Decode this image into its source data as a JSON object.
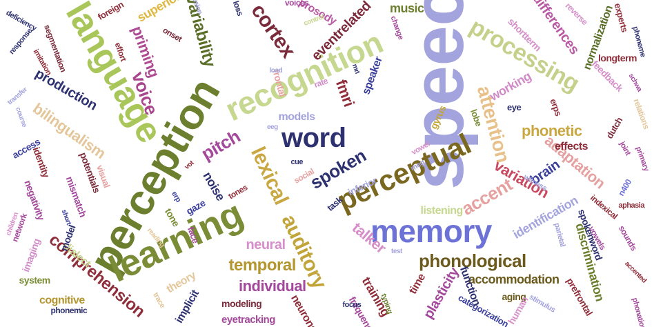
{
  "words": [
    {
      "text": "speech",
      "color": "#a3a3dd"
    },
    {
      "text": "perception",
      "color": "#6b7f2e"
    },
    {
      "text": "language",
      "color": "#a9c65a"
    },
    {
      "text": "recognition",
      "color": "#c6d78f"
    },
    {
      "text": "learning",
      "color": "#7a8c35"
    },
    {
      "text": "memory",
      "color": "#6d73d6"
    },
    {
      "text": "perceptual",
      "color": "#7a6820"
    },
    {
      "text": "word",
      "color": "#2e3170"
    },
    {
      "text": "auditory",
      "color": "#c2a53a"
    },
    {
      "text": "lexical",
      "color": "#c9a741"
    },
    {
      "text": "processing",
      "color": "#c5d18b"
    },
    {
      "text": "attention",
      "color": "#e8c08a"
    },
    {
      "text": "cortex",
      "color": "#7a2a3a"
    },
    {
      "text": "variability",
      "color": "#5a6e27"
    },
    {
      "text": "priming",
      "color": "#ad4a91"
    },
    {
      "text": "voice",
      "color": "#a8458c"
    },
    {
      "text": "spoken",
      "color": "#2e3170"
    },
    {
      "text": "pitch",
      "color": "#a3489b"
    },
    {
      "text": "phonological",
      "color": "#6b5a1c"
    },
    {
      "text": "comprehension",
      "color": "#8f2e3a"
    },
    {
      "text": "accent",
      "color": "#e6a0a0"
    },
    {
      "text": "temporal",
      "color": "#b3962e"
    },
    {
      "text": "talker",
      "color": "#d68ec9"
    },
    {
      "text": "bilingualism",
      "color": "#e3c79a"
    },
    {
      "text": "production",
      "color": "#2e3170"
    },
    {
      "text": "fmri",
      "color": "#8f2e3a"
    },
    {
      "text": "eventrelated",
      "color": "#7a2a3a"
    },
    {
      "text": "adaptation",
      "color": "#e6a0a0"
    },
    {
      "text": "variation",
      "color": "#c94a60"
    },
    {
      "text": "individual",
      "color": "#a3489b"
    },
    {
      "text": "accommodation",
      "color": "#6b5a1c"
    },
    {
      "text": "phonetic",
      "color": "#c9a741"
    },
    {
      "text": "brain",
      "color": "#3a3f9c"
    },
    {
      "text": "neural",
      "color": "#d68ec9"
    },
    {
      "text": "differences",
      "color": "#b95aa5"
    },
    {
      "text": "working",
      "color": "#d08ac8"
    },
    {
      "text": "superior",
      "color": "#e0b840"
    },
    {
      "text": "music",
      "color": "#6b7f2e"
    },
    {
      "text": "identification",
      "color": "#a3a3dd"
    },
    {
      "text": "discrimination",
      "color": "#6b7f2e"
    },
    {
      "text": "models",
      "color": "#a3a3dd"
    },
    {
      "text": "listening",
      "color": "#c6d78f"
    },
    {
      "text": "speaker",
      "color": "#3a3f9c"
    },
    {
      "text": "prosody",
      "color": "#b95aa5"
    },
    {
      "text": "plasticity",
      "color": "#a3489b"
    },
    {
      "text": "training",
      "color": "#8f2e3a"
    },
    {
      "text": "noise",
      "color": "#2e3170"
    },
    {
      "text": "effects",
      "color": "#8f2e3a"
    },
    {
      "text": "feedback",
      "color": "#d68ec9"
    },
    {
      "text": "longterm",
      "color": "#8f2e3a"
    },
    {
      "text": "normalization",
      "color": "#5a6e27"
    },
    {
      "text": "shortterm",
      "color": "#d68ec9"
    },
    {
      "text": "dialect",
      "color": "#c6d78f"
    },
    {
      "text": "cognitive",
      "color": "#b3962e"
    },
    {
      "text": "system",
      "color": "#7a8c35"
    },
    {
      "text": "imaging",
      "color": "#d08ac8"
    },
    {
      "text": "network",
      "color": "#a3489b"
    },
    {
      "text": "model",
      "color": "#2e3170"
    },
    {
      "text": "potentials",
      "color": "#7a2a3a"
    },
    {
      "text": "mismatch",
      "color": "#a3489b"
    },
    {
      "text": "negativity",
      "color": "#a3489b"
    },
    {
      "text": "identity",
      "color": "#8f2e3a"
    },
    {
      "text": "access",
      "color": "#3a3f9c"
    },
    {
      "text": "visual",
      "color": "#e6a0a0"
    },
    {
      "text": "gaze",
      "color": "#3a3f9c"
    },
    {
      "text": "tone",
      "color": "#7a8c35"
    },
    {
      "text": "face",
      "color": "#a3489b"
    },
    {
      "text": "tones",
      "color": "#8f2e3a"
    },
    {
      "text": "social",
      "color": "#e6a0a0"
    },
    {
      "text": "inferior",
      "color": "#a3a3dd"
    },
    {
      "text": "task",
      "color": "#2e3170"
    },
    {
      "text": "frontal",
      "color": "#e6a0a0"
    },
    {
      "text": "eyetracking",
      "color": "#a3489b"
    },
    {
      "text": "modeling",
      "color": "#7a2a3a"
    },
    {
      "text": "time",
      "color": "#8f2e3a"
    },
    {
      "text": "aging",
      "color": "#6b5a1c"
    },
    {
      "text": "human",
      "color": "#d68ec9"
    },
    {
      "text": "categorization",
      "color": "#3a3f9c"
    },
    {
      "text": "function",
      "color": "#2e3170"
    },
    {
      "text": "frequency",
      "color": "#a3489b"
    },
    {
      "text": "neurons",
      "color": "#8f2e3a"
    },
    {
      "text": "focus",
      "color": "#2e3170"
    },
    {
      "text": "implicit",
      "color": "#2e3170"
    },
    {
      "text": "theory",
      "color": "#e3c79a"
    },
    {
      "text": "vowels",
      "color": "#a3489b"
    },
    {
      "text": "sounds",
      "color": "#a3489b"
    },
    {
      "text": "aphasia",
      "color": "#8f2e3a"
    },
    {
      "text": "n400",
      "color": "#6d73d6"
    },
    {
      "text": "witness",
      "color": "#a3a3dd"
    },
    {
      "text": "joint",
      "color": "#a3489b"
    },
    {
      "text": "primary",
      "color": "#a3489b"
    },
    {
      "text": "dutch",
      "color": "#7a2a3a"
    },
    {
      "text": "erps",
      "color": "#8f2e3a"
    },
    {
      "text": "lobe",
      "color": "#7a8c35"
    },
    {
      "text": "eye",
      "color": "#2e3170"
    },
    {
      "text": "gyrus",
      "color": "#c2a53a"
    },
    {
      "text": "vowel",
      "color": "#d68ec9"
    },
    {
      "text": "meg",
      "color": "#a3a3dd"
    },
    {
      "text": "rate",
      "color": "#d08ac8"
    },
    {
      "text": "load",
      "color": "#a3a3dd"
    },
    {
      "text": "control",
      "color": "#c6d78f"
    },
    {
      "text": "change",
      "color": "#a3489b"
    },
    {
      "text": "voices",
      "color": "#a3489b"
    },
    {
      "text": "loss",
      "color": "#2e3170"
    },
    {
      "text": "lesion",
      "color": "#a3a3dd"
    },
    {
      "text": "foreign",
      "color": "#8f2e3a"
    },
    {
      "text": "onset",
      "color": "#7a2a3a"
    },
    {
      "text": "effort",
      "color": "#8f2e3a"
    },
    {
      "text": "segmentation",
      "color": "#7a2a3a"
    },
    {
      "text": "imitation",
      "color": "#8f2e3a"
    },
    {
      "text": "response",
      "color": "#2e3170"
    },
    {
      "text": "deficiency",
      "color": "#2e3170"
    },
    {
      "text": "transfer",
      "color": "#a3a3dd"
    },
    {
      "text": "course",
      "color": "#a3a3dd"
    },
    {
      "text": "children",
      "color": "#d68ec9"
    },
    {
      "text": "short",
      "color": "#3a3f9c"
    },
    {
      "text": "reading",
      "color": "#e3c79a"
    },
    {
      "text": "erp",
      "color": "#3a3f9c"
    },
    {
      "text": "vot",
      "color": "#8f2e3a"
    },
    {
      "text": "cue",
      "color": "#2e3170"
    },
    {
      "text": "eeg",
      "color": "#a3a3dd"
    },
    {
      "text": "mri",
      "color": "#2e3170"
    },
    {
      "text": "test",
      "color": "#a3a3dd"
    },
    {
      "text": "typing",
      "color": "#6b7f2e"
    },
    {
      "text": "trace",
      "color": "#e3c79a"
    },
    {
      "text": "stimulus",
      "color": "#a3a3dd"
    },
    {
      "text": "phonemic",
      "color": "#2e3170"
    },
    {
      "text": "phoneme",
      "color": "#2e3170"
    },
    {
      "text": "phonation",
      "color": "#a3489b"
    },
    {
      "text": "reverse",
      "color": "#d68ec9"
    },
    {
      "text": "experts",
      "color": "#8f2e3a"
    },
    {
      "text": "relations",
      "color": "#e3c79a"
    },
    {
      "text": "schwa",
      "color": "#a3489b"
    },
    {
      "text": "accented",
      "color": "#8f2e3a"
    },
    {
      "text": "prefrontal",
      "color": "#8f2e3a"
    },
    {
      "text": "spokenword",
      "color": "#2e3170"
    },
    {
      "text": "indexical",
      "color": "#8f2e3a"
    },
    {
      "text": "parietal",
      "color": "#a3a3dd"
    }
  ]
}
